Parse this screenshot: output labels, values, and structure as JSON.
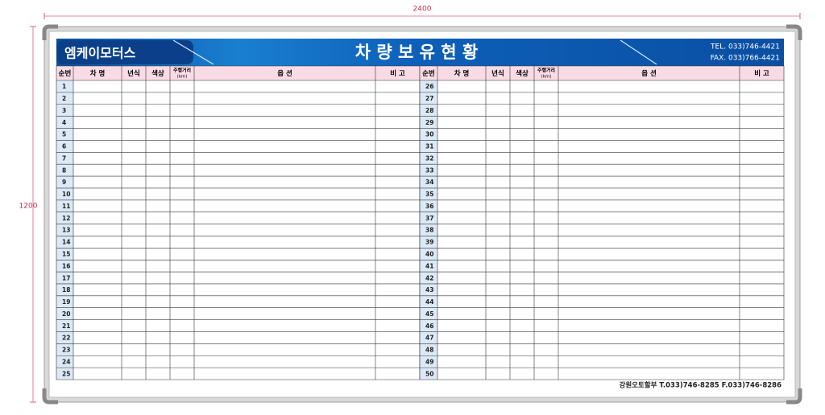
{
  "dimensions": {
    "width": "2400",
    "height": "1200"
  },
  "header": {
    "company": "엠케이모터스",
    "title": "차 량 보 유 현 황",
    "tel": "TEL. 033)746-4421",
    "fax": "FAX. 033)766-4421"
  },
  "table": {
    "header": [
      "순번",
      "차 명",
      "년식",
      "색상",
      "주행거리",
      "옵 션",
      "비 고"
    ],
    "header_unit": "(km)",
    "left_rows": [
      1,
      2,
      3,
      4,
      5,
      6,
      7,
      8,
      9,
      10,
      11,
      12,
      13,
      14,
      15,
      16,
      17,
      18,
      19,
      20,
      21,
      22,
      23,
      24,
      25
    ],
    "right_rows": [
      26,
      27,
      28,
      29,
      30,
      31,
      32,
      33,
      34,
      35,
      36,
      37,
      38,
      39,
      40,
      41,
      42,
      43,
      44,
      45,
      46,
      47,
      48,
      49,
      50
    ]
  },
  "footer": "강원오토할부 T.033)746-8285 F.033)746-8286"
}
